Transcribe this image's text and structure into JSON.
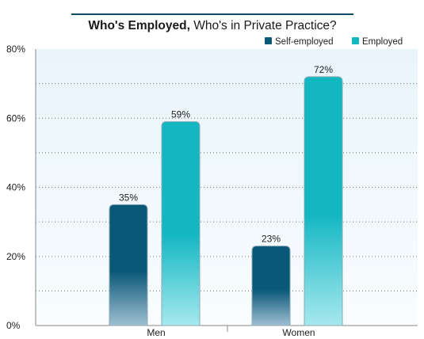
{
  "colors": {
    "title_rule": "#0d4a66",
    "title_text": "#1a1a1a",
    "plot_background_top": "#e9f5fb",
    "plot_background_bottom": "#f8fcfe",
    "grid": "#7a7a7a",
    "axis": "#888888",
    "self_employed_top": "#0a5878",
    "self_employed_bottom": "#9fbfd2",
    "employed_top": "#12b7c2",
    "employed_bottom": "#a7e8ee",
    "bar_outline": "#8ea9b4",
    "label_text": "#222222"
  },
  "chart_data": {
    "type": "bar",
    "title_bold": "Who's Employed,",
    "title_rest": " Who's in Private Practice?",
    "xlabel": "",
    "ylabel": "",
    "categories": [
      "Men",
      "Women"
    ],
    "series": [
      {
        "name": "Self-employed",
        "values": [
          35,
          23
        ],
        "labels": [
          "35%",
          "23%"
        ]
      },
      {
        "name": "Employed",
        "values": [
          59,
          72
        ],
        "labels": [
          "59%",
          "72%"
        ]
      }
    ],
    "ylim": [
      0,
      80
    ],
    "yticks": [
      0,
      20,
      40,
      60,
      80
    ],
    "ytick_labels": [
      "0%",
      "20%",
      "40%",
      "60%",
      "80%"
    ],
    "gridlines": [
      10,
      20,
      30,
      40,
      50,
      60,
      70
    ],
    "grid": true,
    "legend_position": "top-right"
  }
}
